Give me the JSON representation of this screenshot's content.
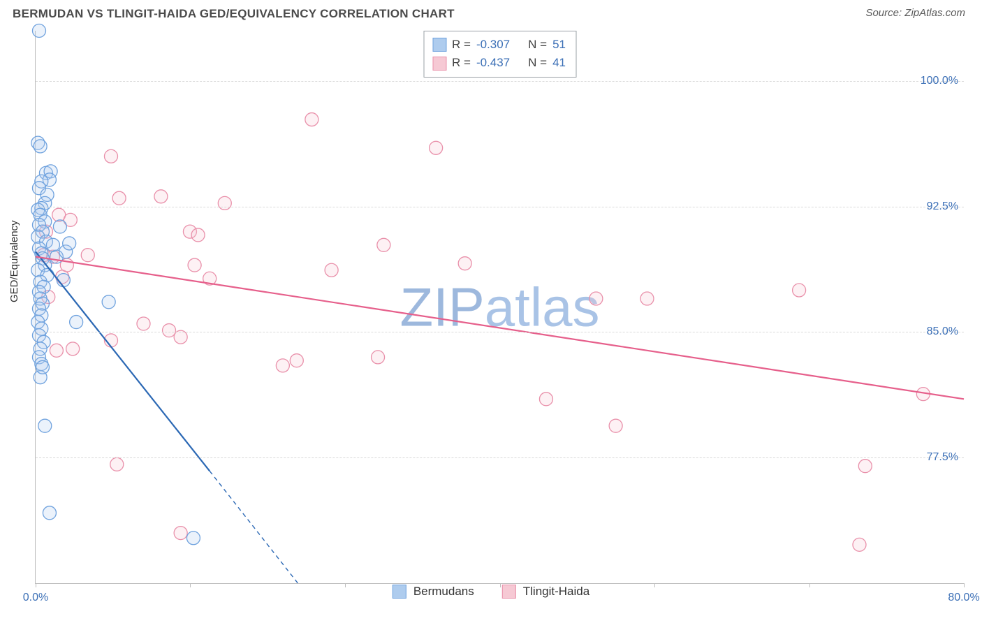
{
  "header": {
    "title": "BERMUDAN VS TLINGIT-HAIDA GED/EQUIVALENCY CORRELATION CHART",
    "source": "Source: ZipAtlas.com"
  },
  "watermark": {
    "part1": "ZIP",
    "part2": "atlas"
  },
  "chart": {
    "type": "scatter",
    "y_axis_label": "GED/Equivalency",
    "xlim": [
      0.0,
      80.0
    ],
    "ylim": [
      70.0,
      103.0
    ],
    "x_ticks": [
      0.0,
      13.33,
      26.67,
      40.0,
      53.33,
      66.67,
      80.0
    ],
    "x_tick_labels": {
      "0.0": "0.0%",
      "80.0": "80.0%"
    },
    "y_ticks": [
      77.5,
      85.0,
      92.5,
      100.0
    ],
    "y_tick_labels": [
      "77.5%",
      "85.0%",
      "92.5%",
      "100.0%"
    ],
    "background_color": "#ffffff",
    "grid_color": "#d9d9d9",
    "axis_color": "#bdbdbd",
    "tick_label_color": "#3b6fb6",
    "point_radius": 9.5,
    "series": {
      "bermudans": {
        "label": "Bermudans",
        "fill": "#aeccee",
        "stroke": "#6fa2de",
        "line_stroke": "#2b68b4",
        "R_label": "R =",
        "R_value": "-0.307",
        "N_label": "N =",
        "N_value": "51",
        "reg_solid": {
          "x1": 0.0,
          "y1": 89.8,
          "x2": 15.0,
          "y2": 76.7
        },
        "reg_dash": {
          "x1": 15.0,
          "y1": 76.7,
          "x2": 22.6,
          "y2": 70.0
        },
        "points": [
          [
            0.3,
            103.0
          ],
          [
            0.2,
            96.3
          ],
          [
            0.4,
            96.1
          ],
          [
            0.9,
            94.5
          ],
          [
            1.3,
            94.6
          ],
          [
            1.2,
            94.1
          ],
          [
            0.5,
            94.0
          ],
          [
            0.3,
            93.6
          ],
          [
            1.0,
            93.2
          ],
          [
            0.8,
            92.7
          ],
          [
            0.5,
            92.4
          ],
          [
            0.2,
            92.3
          ],
          [
            0.4,
            92.0
          ],
          [
            0.8,
            91.6
          ],
          [
            0.3,
            91.4
          ],
          [
            0.6,
            91.0
          ],
          [
            0.2,
            90.7
          ],
          [
            0.9,
            90.4
          ],
          [
            0.3,
            90.0
          ],
          [
            0.5,
            89.7
          ],
          [
            0.6,
            89.4
          ],
          [
            0.8,
            89.0
          ],
          [
            0.2,
            88.7
          ],
          [
            1.0,
            88.4
          ],
          [
            0.4,
            88.0
          ],
          [
            0.7,
            87.7
          ],
          [
            0.3,
            87.4
          ],
          [
            0.4,
            87.0
          ],
          [
            0.6,
            86.7
          ],
          [
            0.3,
            86.4
          ],
          [
            0.5,
            86.0
          ],
          [
            0.2,
            85.6
          ],
          [
            0.5,
            85.2
          ],
          [
            0.3,
            84.8
          ],
          [
            0.7,
            84.4
          ],
          [
            0.4,
            84.0
          ],
          [
            0.3,
            83.5
          ],
          [
            0.5,
            83.1
          ],
          [
            0.4,
            82.3
          ],
          [
            0.6,
            82.9
          ],
          [
            1.5,
            90.2
          ],
          [
            1.8,
            89.5
          ],
          [
            2.1,
            91.3
          ],
          [
            2.6,
            89.8
          ],
          [
            2.4,
            88.1
          ],
          [
            2.9,
            90.3
          ],
          [
            3.5,
            85.6
          ],
          [
            6.3,
            86.8
          ],
          [
            0.8,
            79.4
          ],
          [
            1.2,
            74.2
          ],
          [
            13.6,
            72.7
          ]
        ]
      },
      "tlingit": {
        "label": "Tlingit-Haida",
        "fill": "#f6c9d4",
        "stroke": "#e990aa",
        "line_stroke": "#e65f8b",
        "R_label": "R =",
        "R_value": "-0.437",
        "N_label": "N =",
        "N_value": "41",
        "reg_solid": {
          "x1": 0.0,
          "y1": 89.5,
          "x2": 80.0,
          "y2": 81.0
        },
        "points": [
          [
            2.0,
            92.0
          ],
          [
            3.0,
            91.7
          ],
          [
            6.5,
            95.5
          ],
          [
            1.5,
            89.5
          ],
          [
            2.3,
            88.3
          ],
          [
            7.2,
            93.0
          ],
          [
            4.5,
            89.6
          ],
          [
            10.8,
            93.1
          ],
          [
            9.3,
            85.5
          ],
          [
            13.3,
            91.0
          ],
          [
            14.0,
            90.8
          ],
          [
            13.7,
            89.0
          ],
          [
            16.3,
            92.7
          ],
          [
            15.0,
            88.2
          ],
          [
            6.5,
            84.5
          ],
          [
            11.5,
            85.1
          ],
          [
            12.5,
            84.7
          ],
          [
            23.8,
            97.7
          ],
          [
            25.5,
            88.7
          ],
          [
            21.3,
            83.0
          ],
          [
            22.5,
            83.3
          ],
          [
            30.0,
            90.2
          ],
          [
            34.5,
            96.0
          ],
          [
            29.5,
            83.5
          ],
          [
            37.0,
            89.1
          ],
          [
            44.0,
            81.0
          ],
          [
            48.3,
            87.0
          ],
          [
            3.2,
            84.0
          ],
          [
            7.0,
            77.1
          ],
          [
            12.5,
            73.0
          ],
          [
            52.7,
            87.0
          ],
          [
            50.0,
            79.4
          ],
          [
            65.8,
            87.5
          ],
          [
            71.5,
            77.0
          ],
          [
            71.0,
            72.3
          ],
          [
            76.5,
            81.3
          ],
          [
            0.9,
            91.0
          ],
          [
            1.1,
            87.1
          ],
          [
            2.7,
            89.0
          ],
          [
            1.8,
            83.9
          ],
          [
            0.7,
            89.6
          ]
        ]
      }
    }
  }
}
